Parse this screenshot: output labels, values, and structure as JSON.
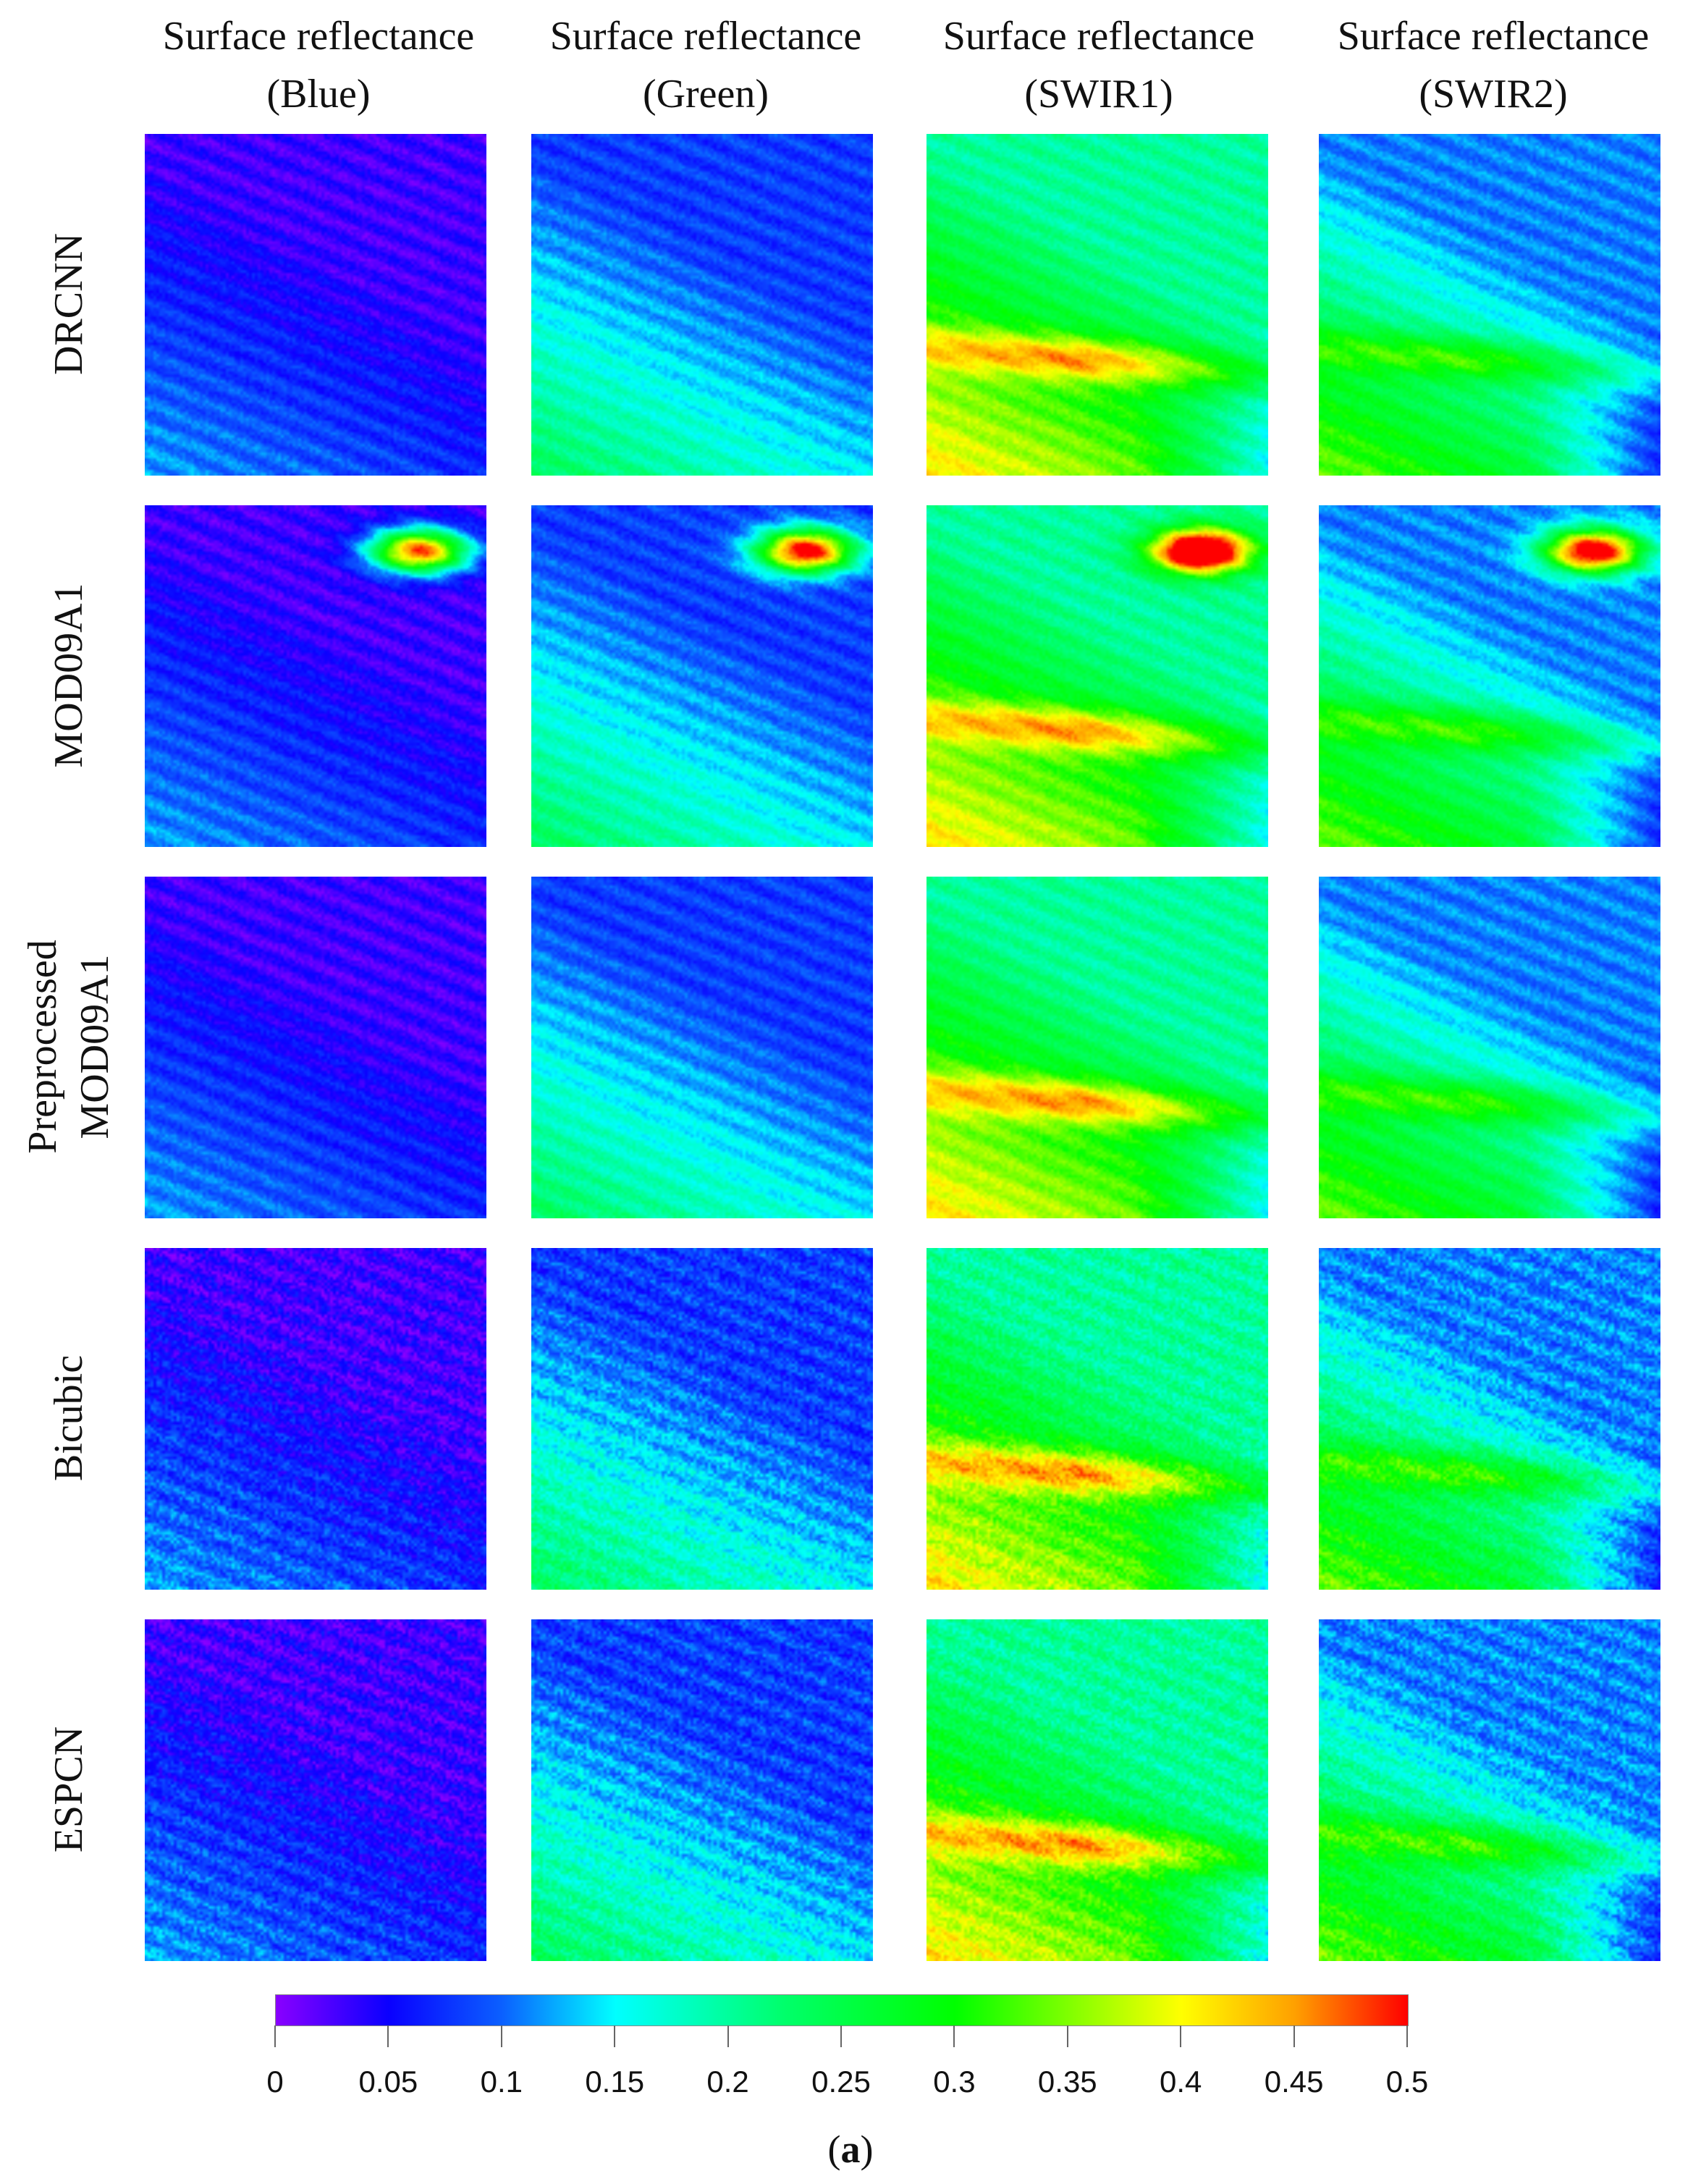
{
  "column_headers": [
    {
      "line1": "Surface reflectance",
      "line2": "(Blue)"
    },
    {
      "line1": "Surface reflectance",
      "line2": "(Green)"
    },
    {
      "line1": "Surface reflectance",
      "line2": "(SWIR1)"
    },
    {
      "line1": "Surface reflectance",
      "line2": "(SWIR2)"
    }
  ],
  "row_labels": [
    {
      "line1": "DRCNN",
      "line2": ""
    },
    {
      "line1": "MOD09A1",
      "line2": ""
    },
    {
      "line1": "Preprocessed",
      "line2": "MOD09A1"
    },
    {
      "line1": "Bicubic",
      "line2": ""
    },
    {
      "line1": "ESPCN",
      "line2": ""
    }
  ],
  "colorbar": {
    "min": 0,
    "max": 0.5,
    "tick_labels": [
      "0",
      "0.05",
      "0.1",
      "0.15",
      "0.2",
      "0.25",
      "0.3",
      "0.35",
      "0.4",
      "0.45",
      "0.5"
    ],
    "colors": [
      "#8a00ff",
      "#0a00ff",
      "#0b60ff",
      "#00ffff",
      "#00ff6a",
      "#00ff00",
      "#ffff00",
      "#ffa000",
      "#ff0000"
    ]
  },
  "caption": {
    "open": "(",
    "letter": "a",
    "close": ")"
  }
}
